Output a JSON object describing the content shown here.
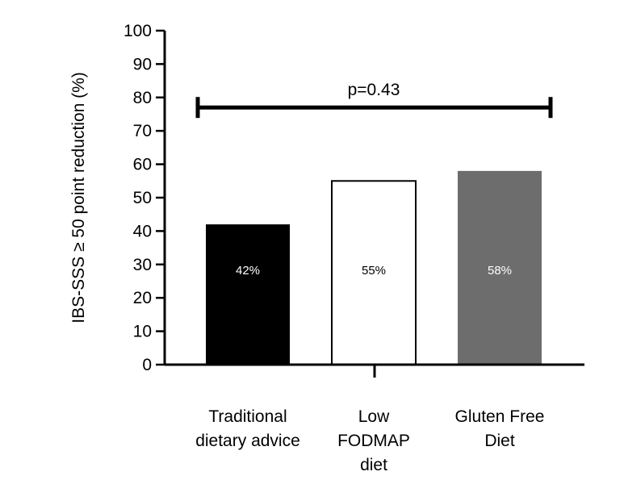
{
  "chart_data": {
    "type": "bar",
    "title": "",
    "ylabel": "IBS-SSS ≥ 50 point reduction (%)",
    "xlabel": "",
    "ylim": [
      0,
      100
    ],
    "yticks": [
      0,
      10,
      20,
      30,
      40,
      50,
      60,
      70,
      80,
      90,
      100
    ],
    "grid": false,
    "categories": [
      [
        "Traditional",
        "dietary advice"
      ],
      [
        "Low",
        "FODMAP",
        "diet"
      ],
      [
        "Gluten Free",
        "Diet"
      ]
    ],
    "values": [
      42,
      55,
      58
    ],
    "data_labels": [
      "42%",
      "55%",
      "58%"
    ],
    "bar_colors": [
      "#000000",
      "#ffffff",
      "#6d6d6d"
    ],
    "label_colors": [
      "#ffffff",
      "#000000",
      "#ffffff"
    ],
    "annotation": {
      "text": "p=0.43",
      "y": 77
    }
  }
}
